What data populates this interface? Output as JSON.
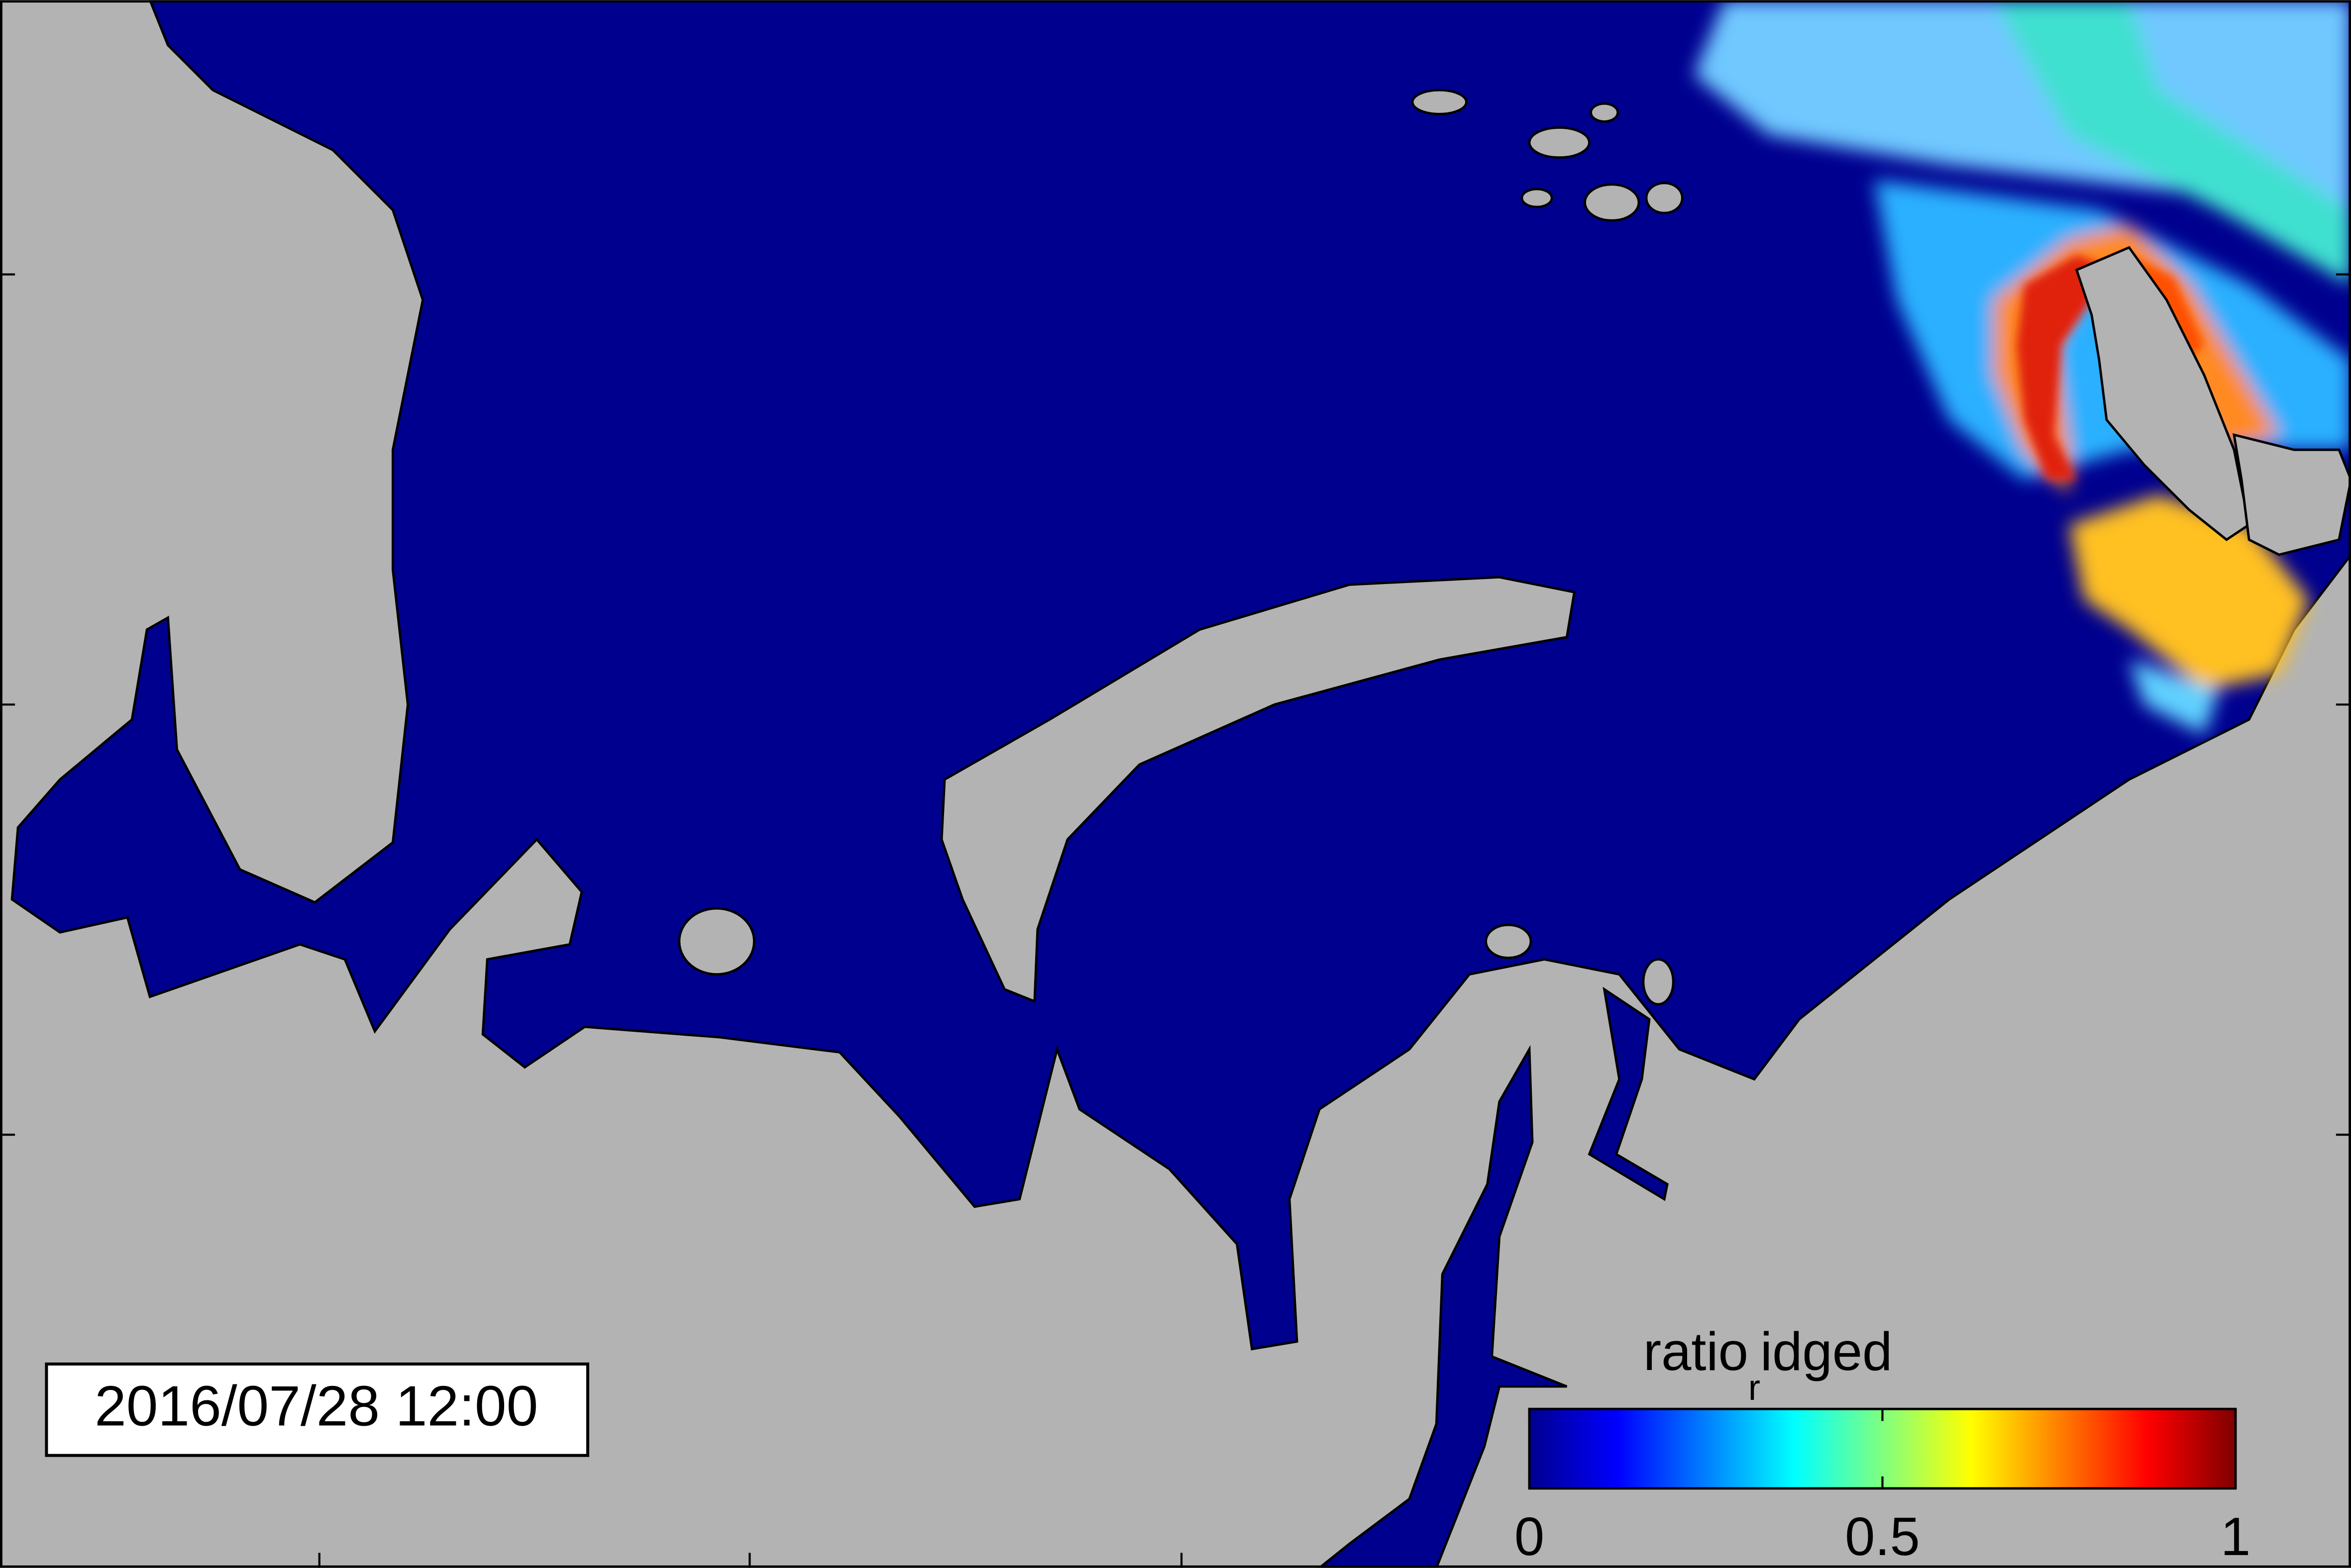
{
  "timestamp": "2016/07/28 12:00",
  "colorbar": {
    "label_parts": [
      "ratio",
      "r",
      "idged"
    ],
    "colormap": "jet",
    "lim": [
      0,
      1
    ],
    "ticks": [
      0,
      0.5,
      1
    ]
  }
}
